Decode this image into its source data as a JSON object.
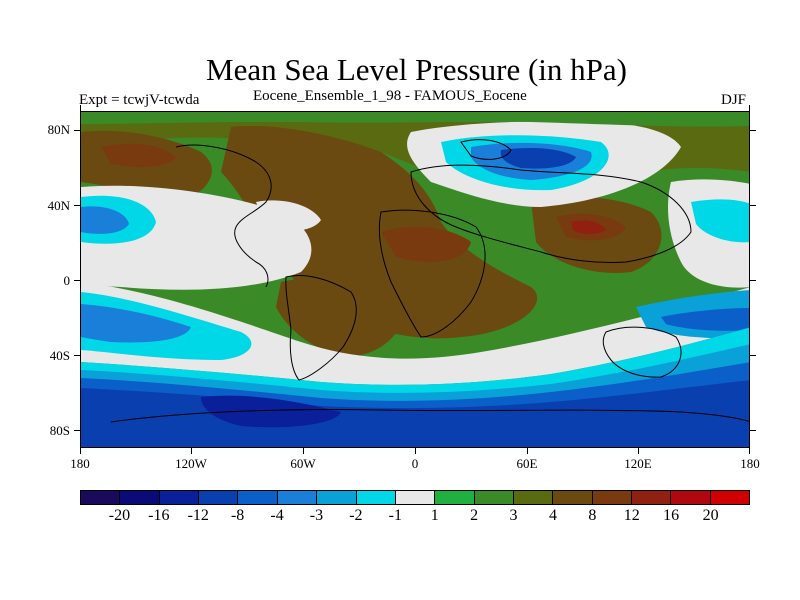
{
  "title": "Mean Sea Level Pressure (in hPa)",
  "subtitle_left": "Expt = tcwjV-tcwda",
  "subtitle_center": "Eocene_Ensemble_1_98 - FAMOUS_Eocene",
  "subtitle_right": "DJF",
  "lat_ticks": [
    "80N",
    "40N",
    "0",
    "40S",
    "80S"
  ],
  "lon_ticks": [
    "180",
    "120W",
    "60W",
    "0",
    "60E",
    "120E",
    "180"
  ],
  "colorbar": {
    "colors": [
      "#1a0a5c",
      "#0a0a78",
      "#0a1f9a",
      "#0a3fb0",
      "#0a5fc8",
      "#1a7fd8",
      "#0aa0d8",
      "#00d8e8",
      "#e8e8e8",
      "#20b040",
      "#3a8a28",
      "#5a6a10",
      "#6a4a10",
      "#7a3a10",
      "#902010",
      "#b00810",
      "#d00000"
    ],
    "labels": [
      "-20",
      "-16",
      "-12",
      "-8",
      "-4",
      "-3",
      "-2",
      "-1",
      "1",
      "2",
      "3",
      "4",
      "8",
      "12",
      "16",
      "20"
    ]
  },
  "map": {
    "colors": {
      "brown": "#6a4a10",
      "olive": "#5a6a10",
      "green": "#3a8a28",
      "lightgreen": "#20b040",
      "white": "#e8e8e8",
      "cyan": "#00d8e8",
      "lightblue": "#0aa0d8",
      "blue": "#1a7fd8",
      "midblue": "#0a5fc8",
      "darkblue": "#0a3fb0",
      "navy": "#0a1f9a",
      "darknavy": "#0a0a78",
      "rust": "#7a3a10",
      "red": "#902010"
    }
  }
}
